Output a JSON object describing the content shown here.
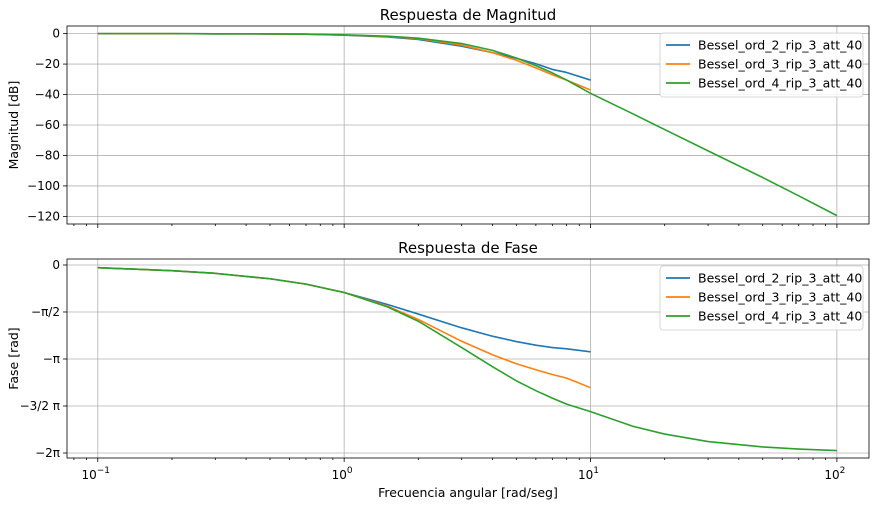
{
  "chart_data": [
    {
      "type": "line",
      "title": "Respuesta de Magnitud",
      "xlabel": "",
      "ylabel": "Magnitud [dB]",
      "xscale": "log",
      "xlim": [
        0.075,
        135
      ],
      "ylim": [
        -125,
        5
      ],
      "grid": true,
      "legend_position": "top-right",
      "y_ticks": [
        {
          "value": 0,
          "label": "0"
        },
        {
          "value": -20,
          "label": "−20"
        },
        {
          "value": -40,
          "label": "−40"
        },
        {
          "value": -60,
          "label": "−60"
        },
        {
          "value": -80,
          "label": "−80"
        },
        {
          "value": -100,
          "label": "−100"
        },
        {
          "value": -120,
          "label": "−120"
        }
      ],
      "series": [
        {
          "name": "Bessel_ord_2_rip_3_att_40",
          "color": "#1f77b4",
          "x": [
            0.1,
            0.2,
            0.3,
            0.5,
            0.7,
            1,
            1.5,
            2,
            3,
            4,
            5,
            6,
            7,
            8,
            10
          ],
          "y": [
            0,
            0,
            -0.1,
            -0.2,
            -0.4,
            -1,
            -2.2,
            -3.8,
            -8.3,
            -12.5,
            -16.2,
            -19.8,
            -23.5,
            -25.5,
            -30.5
          ]
        },
        {
          "name": "Bessel_ord_3_rip_3_att_40",
          "color": "#ff7f0e",
          "x": [
            0.1,
            0.2,
            0.3,
            0.5,
            0.7,
            1,
            1.5,
            2,
            3,
            4,
            5,
            6,
            7,
            8,
            10
          ],
          "y": [
            0,
            0,
            -0.1,
            -0.2,
            -0.4,
            -0.9,
            -1.9,
            -3.3,
            -7.5,
            -12.5,
            -17.5,
            -22.5,
            -27.0,
            -30.5,
            -37.0
          ]
        },
        {
          "name": "Bessel_ord_4_rip_3_att_40",
          "color": "#2ca02c",
          "x": [
            0.1,
            0.2,
            0.3,
            0.5,
            0.7,
            1,
            1.5,
            2,
            3,
            4,
            5,
            6,
            7,
            8,
            10,
            15,
            20,
            30,
            50,
            70,
            100
          ],
          "y": [
            0,
            0,
            -0.1,
            -0.2,
            -0.4,
            -0.8,
            -1.7,
            -3.0,
            -6.5,
            -11.0,
            -16.0,
            -21.0,
            -25.8,
            -30.5,
            -39.2,
            -53.0,
            -63.0,
            -77.0,
            -94.5,
            -106.5,
            -119.5
          ]
        }
      ]
    },
    {
      "type": "line",
      "title": "Respuesta de Fase",
      "xlabel": "Frecuencia angular [rad/seg]",
      "ylabel": "Fase [rad]",
      "xscale": "log",
      "xlim": [
        0.075,
        135
      ],
      "ylim": [
        -6.45,
        0.2
      ],
      "grid": true,
      "legend_position": "top-right",
      "x_ticks": [
        {
          "value": 0.1,
          "base": "10",
          "exp": "−1"
        },
        {
          "value": 1,
          "base": "10",
          "exp": "0"
        },
        {
          "value": 10,
          "base": "10",
          "exp": "1"
        },
        {
          "value": 100,
          "base": "10",
          "exp": "2"
        }
      ],
      "y_ticks": [
        {
          "value": 0,
          "label": "0"
        },
        {
          "value": -1.5708,
          "label": "−π/2"
        },
        {
          "value": -3.1416,
          "label": "−π"
        },
        {
          "value": -4.7124,
          "label": "−3/2 π"
        },
        {
          "value": -6.2832,
          "label": "−2π"
        }
      ],
      "series": [
        {
          "name": "Bessel_ord_2_rip_3_att_40",
          "color": "#1f77b4",
          "x": [
            0.1,
            0.2,
            0.3,
            0.5,
            0.7,
            1,
            1.5,
            2,
            3,
            4,
            5,
            6,
            7,
            8,
            10
          ],
          "y": [
            -0.09,
            -0.19,
            -0.28,
            -0.46,
            -0.64,
            -0.92,
            -1.32,
            -1.64,
            -2.1,
            -2.38,
            -2.56,
            -2.68,
            -2.76,
            -2.8,
            -2.9
          ]
        },
        {
          "name": "Bessel_ord_3_rip_3_att_40",
          "color": "#ff7f0e",
          "x": [
            0.1,
            0.2,
            0.3,
            0.5,
            0.7,
            1,
            1.5,
            2,
            3,
            4,
            5,
            6,
            7,
            8,
            10
          ],
          "y": [
            -0.09,
            -0.19,
            -0.28,
            -0.46,
            -0.64,
            -0.92,
            -1.38,
            -1.82,
            -2.55,
            -3.0,
            -3.3,
            -3.5,
            -3.66,
            -3.78,
            -4.1
          ]
        },
        {
          "name": "Bessel_ord_4_rip_3_att_40",
          "color": "#2ca02c",
          "x": [
            0.1,
            0.2,
            0.3,
            0.5,
            0.7,
            1,
            1.5,
            2,
            3,
            4,
            5,
            6,
            7,
            8,
            10,
            15,
            20,
            30,
            50,
            70,
            100
          ],
          "y": [
            -0.09,
            -0.19,
            -0.28,
            -0.46,
            -0.64,
            -0.92,
            -1.4,
            -1.88,
            -2.76,
            -3.4,
            -3.87,
            -4.2,
            -4.45,
            -4.65,
            -4.9,
            -5.4,
            -5.65,
            -5.9,
            -6.08,
            -6.15,
            -6.2
          ]
        }
      ]
    }
  ]
}
